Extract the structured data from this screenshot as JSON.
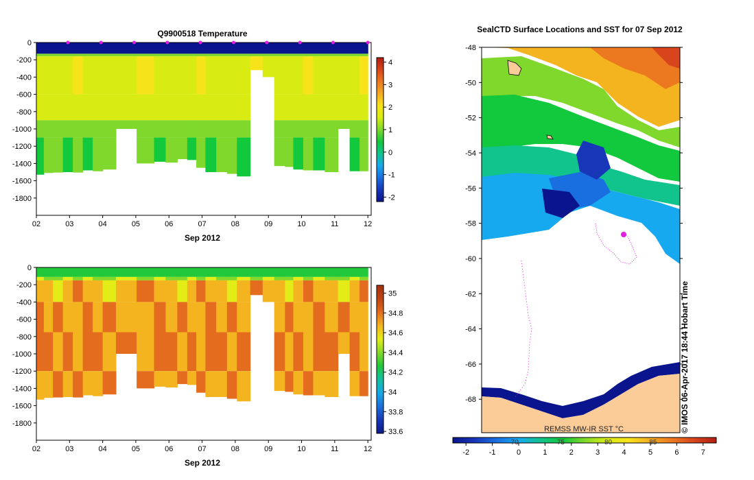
{
  "colors": {
    "temperature_scale": [
      "#0a148c",
      "#1736b8",
      "#1a6fe0",
      "#16a9ef",
      "#10c48c",
      "#12c83c",
      "#7fd82b",
      "#d8ec13",
      "#f7e31a",
      "#f4aa24",
      "#ec7820",
      "#d8441b",
      "#b01e12"
    ],
    "salinity_scale": [
      "#0b1a8a",
      "#1837b7",
      "#1b6fdc",
      "#17a8e8",
      "#14c0a0",
      "#20c83a",
      "#86d828",
      "#e4ec18",
      "#f4b420",
      "#e46c1e",
      "#c04414",
      "#a6300e"
    ],
    "sst_scale": [
      "#0a148c",
      "#1736b8",
      "#1a6fe0",
      "#16a9ef",
      "#10c48c",
      "#12c83c",
      "#7fd82b",
      "#d8ec13",
      "#f7e31a",
      "#f4aa24",
      "#ec7820",
      "#d8441b",
      "#b01e12"
    ],
    "land": "#fbcb98",
    "ice": "#ffffff",
    "track": "#e21ce0",
    "no_data": "#ffffff"
  },
  "chart_data": [
    {
      "type": "heatmap",
      "title": "Q9900518  Temperature",
      "xlabel": "Sep 2012",
      "ylabel": "",
      "x_ticks": [
        "02",
        "03",
        "04",
        "05",
        "06",
        "07",
        "08",
        "09",
        "10",
        "11",
        "12"
      ],
      "xlim_days": [
        2,
        12.1
      ],
      "y_ticks": [
        0,
        -200,
        -400,
        -600,
        -800,
        -1000,
        -1200,
        -1400,
        -1600,
        -1800
      ],
      "ylim": [
        -2000,
        0
      ],
      "colorbar_ticks": [
        4,
        3,
        2,
        1,
        0,
        -1,
        -2
      ],
      "colorbar_range": [
        -2.2,
        4.2
      ],
      "profile_times": [
        2.1,
        2.35,
        2.65,
        2.95,
        3.25,
        3.55,
        3.85,
        4.15,
        4.65,
        5.4,
        5.7,
        6.1,
        6.4,
        6.7,
        6.95,
        7.25,
        7.6,
        7.9,
        8.2,
        8.7,
        8.95,
        9.4,
        9.6,
        9.9,
        10.2,
        10.5,
        10.9,
        11.3,
        11.6,
        11.9
      ],
      "max_depths": [
        -1530,
        -1510,
        -1505,
        -1500,
        -1505,
        -1480,
        -1490,
        -1470,
        -1000,
        -1400,
        -1380,
        -1390,
        -1350,
        -1360,
        -1450,
        -1500,
        -1500,
        -1520,
        -1550,
        -320,
        -400,
        -1430,
        -1440,
        -1470,
        -1480,
        -1480,
        -1500,
        -1000,
        -1490,
        -1490
      ],
      "layers": [
        {
          "top": 0,
          "bottom": -130,
          "value": -2.0
        },
        {
          "top": -130,
          "bottom": -160,
          "value": 0.9
        },
        {
          "top": -160,
          "bottom": -600,
          "value": 1.75
        },
        {
          "top": -600,
          "bottom": -900,
          "value": 1.45
        },
        {
          "top": -900,
          "bottom": -1100,
          "value": 1.15
        },
        {
          "top": -1100,
          "bottom": -1600,
          "value": 0.75
        }
      ],
      "surface_markers": [
        2.95,
        3.95,
        4.95,
        5.95,
        6.95,
        7.95,
        8.95,
        9.95,
        10.95,
        12.0
      ]
    },
    {
      "type": "heatmap",
      "title": "",
      "xlabel": "Sep 2012",
      "ylabel": "",
      "x_ticks": [
        "02",
        "03",
        "04",
        "05",
        "06",
        "07",
        "08",
        "09",
        "10",
        "11",
        "12"
      ],
      "xlim_days": [
        2,
        12.1
      ],
      "y_ticks": [
        0,
        -200,
        -400,
        -600,
        -800,
        -1000,
        -1200,
        -1400,
        -1600,
        -1800
      ],
      "ylim": [
        -2000,
        0
      ],
      "colorbar_ticks": [
        35,
        34.8,
        34.6,
        34.4,
        34.2,
        34,
        33.8,
        33.6
      ],
      "colorbar_range": [
        33.58,
        35.08
      ],
      "profile_times": [
        2.1,
        2.35,
        2.65,
        2.95,
        3.25,
        3.55,
        3.85,
        4.15,
        4.65,
        5.4,
        5.7,
        6.1,
        6.4,
        6.7,
        6.95,
        7.25,
        7.6,
        7.9,
        8.2,
        8.7,
        8.95,
        9.4,
        9.6,
        9.9,
        10.2,
        10.5,
        10.9,
        11.3,
        11.6,
        11.9
      ],
      "max_depths": [
        -1530,
        -1510,
        -1505,
        -1500,
        -1505,
        -1480,
        -1490,
        -1470,
        -1000,
        -1400,
        -1380,
        -1390,
        -1350,
        -1360,
        -1450,
        -1500,
        -1500,
        -1520,
        -1550,
        -320,
        -400,
        -1430,
        -1440,
        -1470,
        -1480,
        -1480,
        -1500,
        -1000,
        -1490,
        -1490
      ],
      "layers": [
        {
          "top": 0,
          "bottom": -110,
          "value": 34.25
        },
        {
          "top": -110,
          "bottom": -150,
          "value": 34.45
        },
        {
          "top": -150,
          "bottom": -400,
          "value": 34.68
        },
        {
          "top": -400,
          "bottom": -750,
          "value": 34.72
        },
        {
          "top": -750,
          "bottom": -1200,
          "value": 34.77
        },
        {
          "top": -1200,
          "bottom": -1600,
          "value": 34.72
        }
      ]
    },
    {
      "type": "heatmap",
      "title": "SealCTD Surface Locations and SST for 07 Sep 2012",
      "xlabel": "",
      "ylabel": "",
      "y_ticks": [
        -48,
        -50,
        -52,
        -54,
        -56,
        -58,
        -60,
        -62,
        -64,
        -66,
        -68
      ],
      "ylim": [
        -69.9,
        -48
      ],
      "colorbar_label": "REMSS MW-IR SST °C",
      "colorbar_ticks": [
        -2,
        -1,
        0,
        1,
        2,
        3,
        4,
        5,
        6,
        7
      ],
      "colorbar_range": [
        -2.5,
        7.5
      ],
      "colorbar_overlay_ticks": [
        "70",
        "75",
        "80",
        "85"
      ],
      "credit": "© IMOS 06-Apr-2017 18:44 Hobart Time"
    }
  ]
}
